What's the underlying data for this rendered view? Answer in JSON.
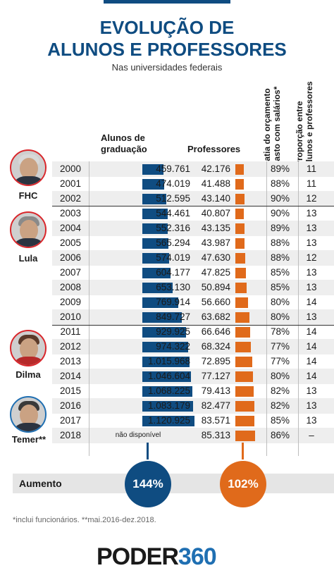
{
  "header": {
    "title_line1": "EVOLUÇÃO DE",
    "title_line2": "ALUNOS E PROFESSORES",
    "subtitle": "Nas universidades federais"
  },
  "columns": {
    "students_line1": "Alunos de",
    "students_line2": "graduação",
    "teachers": "Professores",
    "budget_line1": "Fatia do orçamento",
    "budget_line2": "gasto com salários*",
    "ratio_line1": "Proporção entre",
    "ratio_line2": "alunos e professores"
  },
  "presidents": [
    {
      "name": "FHC",
      "icon": "president-portrait-icon"
    },
    {
      "name": "Lula",
      "icon": "president-portrait-icon"
    },
    {
      "name": "Dilma",
      "icon": "president-portrait-icon"
    },
    {
      "name": "Temer**",
      "icon": "president-portrait-icon"
    }
  ],
  "rows": [
    {
      "year": "2000",
      "students": "459.761",
      "students_value": 459761,
      "teachers": "42.176",
      "teachers_value": 42176,
      "budget": "89%",
      "ratio": "11"
    },
    {
      "year": "2001",
      "students": "474.019",
      "students_value": 474019,
      "teachers": "41.488",
      "teachers_value": 41488,
      "budget": "88%",
      "ratio": "11"
    },
    {
      "year": "2002",
      "students": "512.595",
      "students_value": 512595,
      "teachers": "43.140",
      "teachers_value": 43140,
      "budget": "90%",
      "ratio": "12"
    },
    {
      "year": "2003",
      "students": "544.461",
      "students_value": 544461,
      "teachers": "40.807",
      "teachers_value": 40807,
      "budget": "90%",
      "ratio": "13"
    },
    {
      "year": "2004",
      "students": "552.316",
      "students_value": 552316,
      "teachers": "43.135",
      "teachers_value": 43135,
      "budget": "89%",
      "ratio": "13"
    },
    {
      "year": "2005",
      "students": "565.294",
      "students_value": 565294,
      "teachers": "43.987",
      "teachers_value": 43987,
      "budget": "88%",
      "ratio": "13"
    },
    {
      "year": "2006",
      "students": "574.019",
      "students_value": 574019,
      "teachers": "47.630",
      "teachers_value": 47630,
      "budget": "88%",
      "ratio": "12"
    },
    {
      "year": "2007",
      "students": "604.177",
      "students_value": 604177,
      "teachers": "47.825",
      "teachers_value": 47825,
      "budget": "85%",
      "ratio": "13"
    },
    {
      "year": "2008",
      "students": "653.130",
      "students_value": 653130,
      "teachers": "50.894",
      "teachers_value": 50894,
      "budget": "85%",
      "ratio": "13"
    },
    {
      "year": "2009",
      "students": "769.914",
      "students_value": 769914,
      "teachers": "56.660",
      "teachers_value": 56660,
      "budget": "80%",
      "ratio": "14"
    },
    {
      "year": "2010",
      "students": "849.727",
      "students_value": 849727,
      "teachers": "63.682",
      "teachers_value": 63682,
      "budget": "80%",
      "ratio": "13"
    },
    {
      "year": "2011",
      "students": "929.925",
      "students_value": 929925,
      "teachers": "66.646",
      "teachers_value": 66646,
      "budget": "78%",
      "ratio": "14"
    },
    {
      "year": "2012",
      "students": "974.322",
      "students_value": 974322,
      "teachers": "68.324",
      "teachers_value": 68324,
      "budget": "77%",
      "ratio": "14"
    },
    {
      "year": "2013",
      "students": "1.015.968",
      "students_value": 1015968,
      "teachers": "72.895",
      "teachers_value": 72895,
      "budget": "77%",
      "ratio": "14"
    },
    {
      "year": "2014",
      "students": "1.046.604",
      "students_value": 1046604,
      "teachers": "77.127",
      "teachers_value": 77127,
      "budget": "80%",
      "ratio": "14"
    },
    {
      "year": "2015",
      "students": "1.068.225",
      "students_value": 1068225,
      "teachers": "79.413",
      "teachers_value": 79413,
      "budget": "82%",
      "ratio": "13"
    },
    {
      "year": "2016",
      "students": "1.083.179",
      "students_value": 1083179,
      "teachers": "82.477",
      "teachers_value": 82477,
      "budget": "82%",
      "ratio": "13"
    },
    {
      "year": "2017",
      "students": "1.120.925",
      "students_value": 1120925,
      "teachers": "83.571",
      "teachers_value": 83571,
      "budget": "85%",
      "ratio": "13"
    },
    {
      "year": "2018",
      "students": "não disponível",
      "students_value": null,
      "teachers": "85.313",
      "teachers_value": 85313,
      "budget": "86%",
      "ratio": "–"
    }
  ],
  "increase": {
    "label": "Aumento",
    "students": "144%",
    "teachers": "102%"
  },
  "footnote": "*inclui funcionários. **mai.2016-dez.2018.",
  "logo": {
    "part1": "PODER",
    "part2": "360"
  },
  "colors": {
    "students": "#0f4c81",
    "teachers": "#e06a1b",
    "accent_red": "#d9262b",
    "logo_blue": "#1f6fb2"
  }
}
